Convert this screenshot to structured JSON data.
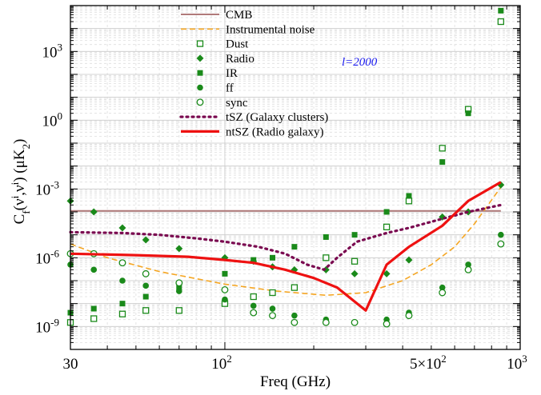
{
  "chart_data": {
    "type": "line",
    "xlabel": "Freq (GHz)",
    "ylabel": "C^f(ν_i,ν_i) (μK^2)",
    "xscale": "log",
    "yscale": "log",
    "xlim": [
      30,
      1000
    ],
    "ylim": [
      1e-10,
      100000.0
    ],
    "grid": true,
    "legend_position": "top-center",
    "annotation": "l=2000",
    "x_ticks": [
      {
        "value": 30,
        "label": "30"
      },
      {
        "value": 100,
        "label": "10",
        "sup": "2"
      },
      {
        "value": 500,
        "label": "5×10",
        "sup": "2"
      },
      {
        "value": 1000,
        "label": "10",
        "sup": "3"
      }
    ],
    "y_ticks": [
      {
        "value": 1e-09,
        "label": "10",
        "sup": "-9"
      },
      {
        "value": 1e-06,
        "label": "10",
        "sup": "-6"
      },
      {
        "value": 0.001,
        "label": "10",
        "sup": "-3"
      },
      {
        "value": 1,
        "label": "10",
        "sup": "0"
      },
      {
        "value": 1000,
        "label": "10",
        "sup": "3"
      }
    ],
    "series": [
      {
        "name": "CMB",
        "style": "line",
        "color": "#b07a7a",
        "dash": "",
        "width": 2,
        "x": [
          30,
          860
        ],
        "y": [
          0.00011,
          0.00011
        ]
      },
      {
        "name": "Instrumental noise",
        "style": "line",
        "color": "#f5a623",
        "dash": "7,4",
        "width": 1.6,
        "x": [
          30,
          40,
          60,
          100,
          150,
          220,
          300,
          400,
          500,
          600,
          700,
          860
        ],
        "y": [
          4e-06,
          1e-06,
          2.5e-07,
          7e-08,
          3.5e-08,
          2.3e-08,
          3e-08,
          1e-07,
          5e-07,
          3e-06,
          3e-05,
          0.0012
        ]
      },
      {
        "name": "Dust",
        "style": "marker",
        "marker": "open-square",
        "color": "#1a8a1a",
        "x": [
          30,
          36,
          45,
          54,
          70,
          100,
          125,
          145,
          172,
          220,
          275,
          353,
          420,
          545,
          667,
          860
        ],
        "y": [
          1.5e-09,
          2.2e-09,
          3.5e-09,
          5e-09,
          5e-09,
          1e-08,
          2e-08,
          3e-08,
          5e-08,
          1e-06,
          7e-07,
          2.2e-05,
          0.0003,
          0.06,
          3,
          20000.0
        ]
      },
      {
        "name": "Radio",
        "style": "marker",
        "marker": "filled-diamond",
        "color": "#1a8a1a",
        "x": [
          30,
          36,
          45,
          54,
          70,
          100,
          125,
          145,
          172,
          220,
          275,
          353,
          420,
          545,
          667,
          860
        ],
        "y": [
          0.0003,
          0.0001,
          2e-05,
          6e-06,
          2.5e-06,
          1e-06,
          7e-07,
          4e-07,
          3e-07,
          3e-07,
          2e-07,
          2e-07,
          8e-07,
          6e-05,
          0.0001,
          0.0015
        ]
      },
      {
        "name": "IR",
        "style": "marker",
        "marker": "filled-square",
        "color": "#1a8a1a",
        "x": [
          30,
          36,
          45,
          54,
          70,
          100,
          125,
          145,
          172,
          220,
          275,
          353,
          420,
          545,
          667,
          860
        ],
        "y": [
          4e-09,
          6e-09,
          1e-08,
          2e-08,
          5e-08,
          2e-07,
          8e-07,
          1e-06,
          3e-06,
          8e-06,
          1e-05,
          0.0001,
          0.0005,
          0.015,
          2,
          60000.0
        ]
      },
      {
        "name": "ff",
        "style": "marker",
        "marker": "filled-circle",
        "color": "#1a8a1a",
        "x": [
          30,
          36,
          45,
          54,
          70,
          100,
          125,
          145,
          172,
          220,
          275,
          353,
          420,
          545,
          667,
          860
        ],
        "y": [
          5e-07,
          3e-07,
          1e-07,
          6e-08,
          3.5e-08,
          1.5e-08,
          8e-09,
          6e-09,
          3e-09,
          2e-09,
          1.5e-09,
          2e-09,
          4e-09,
          5e-08,
          5e-07,
          1e-05
        ]
      },
      {
        "name": "sync",
        "style": "marker",
        "marker": "open-circle",
        "color": "#1a8a1a",
        "x": [
          30,
          36,
          45,
          54,
          70,
          100,
          125,
          145,
          172,
          220,
          275,
          353,
          420,
          545,
          667,
          860
        ],
        "y": [
          1.5e-06,
          1.5e-06,
          6e-07,
          2e-07,
          8e-08,
          4e-08,
          4e-09,
          3e-09,
          1.5e-09,
          1.5e-09,
          1.5e-09,
          1.3e-09,
          3e-09,
          3e-08,
          3e-07,
          4e-06
        ]
      },
      {
        "name": "tSZ (Galaxy clusters)",
        "style": "line",
        "color": "#7a0a50",
        "dash": "2,5",
        "width": 3.2,
        "x": [
          30,
          45,
          60,
          80,
          100,
          130,
          160,
          190,
          217,
          240,
          280,
          353,
          420,
          545,
          667,
          860
        ],
        "y": [
          1.3e-05,
          1.2e-05,
          1e-05,
          7e-06,
          5e-06,
          3e-06,
          1.5e-06,
          5e-07,
          3e-07,
          1e-06,
          5e-06,
          1.2e-05,
          2e-05,
          5e-05,
          0.0001,
          0.0002
        ]
      },
      {
        "name": "ntSZ (Radio galaxy)",
        "style": "line",
        "color": "#ee1111",
        "dash": "",
        "width": 3.2,
        "x": [
          30,
          50,
          75,
          100,
          125,
          160,
          200,
          240,
          300,
          353,
          420,
          545,
          667,
          860
        ],
        "y": [
          1.5e-06,
          1.3e-06,
          1.1e-06,
          8e-07,
          6e-07,
          3e-07,
          1.3e-07,
          5e-08,
          5e-09,
          5e-07,
          3e-06,
          2.5e-05,
          0.0003,
          0.002
        ]
      }
    ]
  }
}
